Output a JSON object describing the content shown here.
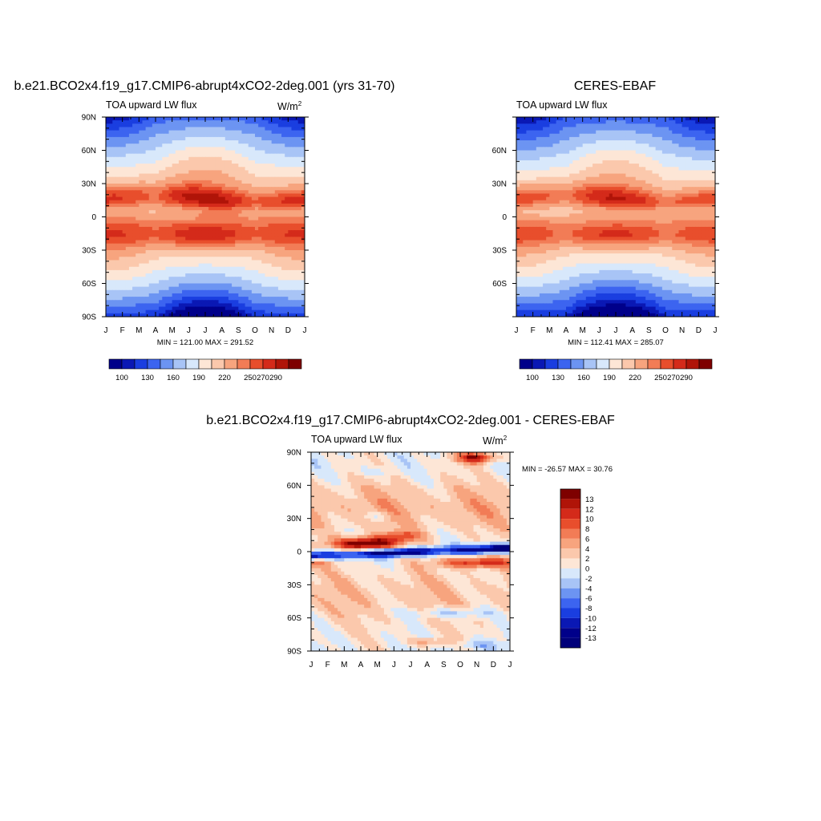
{
  "chart_data": [
    {
      "type": "heatmap",
      "title": "b.e21.BCO2x4.f19_g17.CMIP6-abrupt4xCO2-2deg.001 (yrs 31-70)",
      "left_label": "TOA upward LW flux",
      "units": "W/m",
      "units_sup": "2",
      "x_ticks": [
        "J",
        "F",
        "M",
        "A",
        "M",
        "J",
        "J",
        "A",
        "S",
        "O",
        "N",
        "D",
        "J"
      ],
      "y_ticks": [
        "90N",
        "60N",
        "30N",
        "0",
        "30S",
        "60S",
        "90S"
      ],
      "xlim": [
        1,
        13
      ],
      "ylim": [
        -90,
        90
      ],
      "stats_label": "MIN = 121.00 MAX = 291.52",
      "min": 121.0,
      "max": 291.52,
      "colorbar_labels": [
        "100",
        "130",
        "160",
        "190",
        "220",
        "250",
        "270",
        "290"
      ],
      "colorbar_colors": [
        "#00008a",
        "#0a18b4",
        "#1a3ee0",
        "#3c64f0",
        "#6c94f2",
        "#a8c4f6",
        "#d8e8fb",
        "#fde6d6",
        "#fbc8ac",
        "#f7a47e",
        "#f27c56",
        "#e84e2c",
        "#d42a1a",
        "#b01408",
        "#7e0000"
      ]
    },
    {
      "type": "heatmap",
      "title": "CERES-EBAF",
      "left_label": "TOA upward LW flux",
      "x_ticks": [
        "J",
        "F",
        "M",
        "A",
        "M",
        "J",
        "J",
        "A",
        "S",
        "O",
        "N",
        "D",
        "J"
      ],
      "y_ticks": [
        "60N",
        "30N",
        "0",
        "30S",
        "60S"
      ],
      "xlim": [
        1,
        13
      ],
      "ylim": [
        -90,
        90
      ],
      "stats_label": "MIN = 112.41 MAX = 285.07",
      "min": 112.41,
      "max": 285.07,
      "colorbar_labels": [
        "100",
        "130",
        "160",
        "190",
        "220",
        "250",
        "270",
        "290"
      ]
    },
    {
      "type": "heatmap",
      "title": "b.e21.BCO2x4.f19_g17.CMIP6-abrupt4xCO2-2deg.001 - CERES-EBAF",
      "left_label": "TOA upward LW flux",
      "units": "W/m",
      "units_sup": "2",
      "x_ticks": [
        "J",
        "F",
        "M",
        "A",
        "M",
        "J",
        "J",
        "A",
        "S",
        "O",
        "N",
        "D",
        "J"
      ],
      "y_ticks": [
        "90N",
        "60N",
        "30N",
        "0",
        "30S",
        "60S",
        "90S"
      ],
      "xlim": [
        1,
        13
      ],
      "ylim": [
        -90,
        90
      ],
      "stats_label": "MIN = -26.57 MAX =  30.76",
      "min": -26.57,
      "max": 30.76,
      "colorbar_labels": [
        "13",
        "12",
        "10",
        "8",
        "6",
        "4",
        "2",
        "0",
        "-2",
        "-4",
        "-6",
        "-8",
        "-10",
        "-12",
        "-13"
      ],
      "colorbar_colors": [
        "#7e0000",
        "#b01408",
        "#d42a1a",
        "#e84e2c",
        "#f27c56",
        "#f7a47e",
        "#fbc8ac",
        "#fde6d6",
        "#d8e8fb",
        "#a8c4f6",
        "#6c94f2",
        "#3c64f0",
        "#1a3ee0",
        "#0a18b4",
        "#00008a",
        "#00007a"
      ]
    }
  ]
}
